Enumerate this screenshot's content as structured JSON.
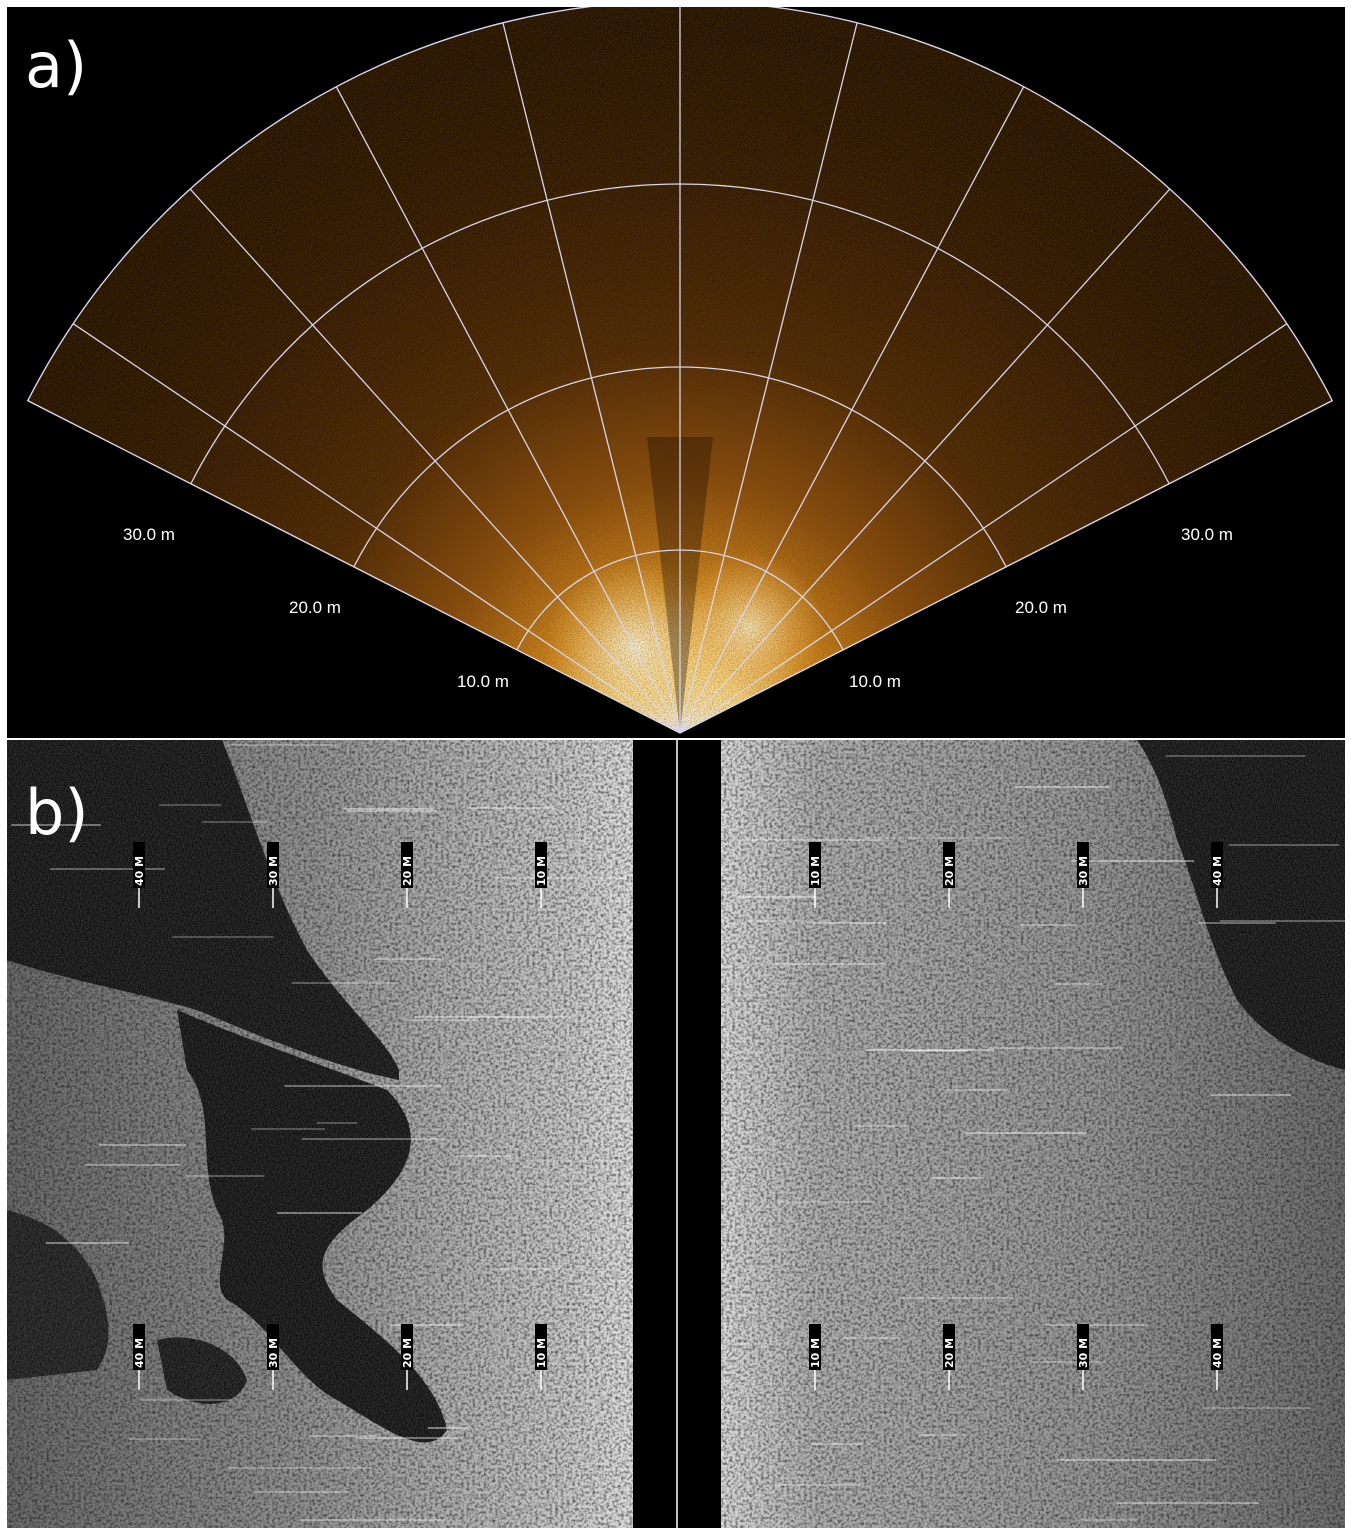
{
  "panel_a": {
    "label": "a)",
    "range_labels": [
      "10.0 m",
      "20.0 m",
      "30.0 m"
    ],
    "image": "forward-looking sonar fan view, orange colormap",
    "colors": {
      "background": "#000000",
      "grid": "#d8d4ea",
      "sonar_bright": "#ffe9b0",
      "sonar_mid": "#c56e12",
      "sonar_dark": "#2a1505"
    }
  },
  "panel_b": {
    "label": "b)",
    "range_markers": [
      "10 M",
      "20 M",
      "30 M",
      "40 M"
    ],
    "image": "side-scan sonar waterfall, grayscale",
    "colors": {
      "background": "#000000",
      "seabed_light": "#bdbdbd",
      "seabed_mid": "#7a7a7a",
      "shadow": "#0a0a0a"
    }
  }
}
